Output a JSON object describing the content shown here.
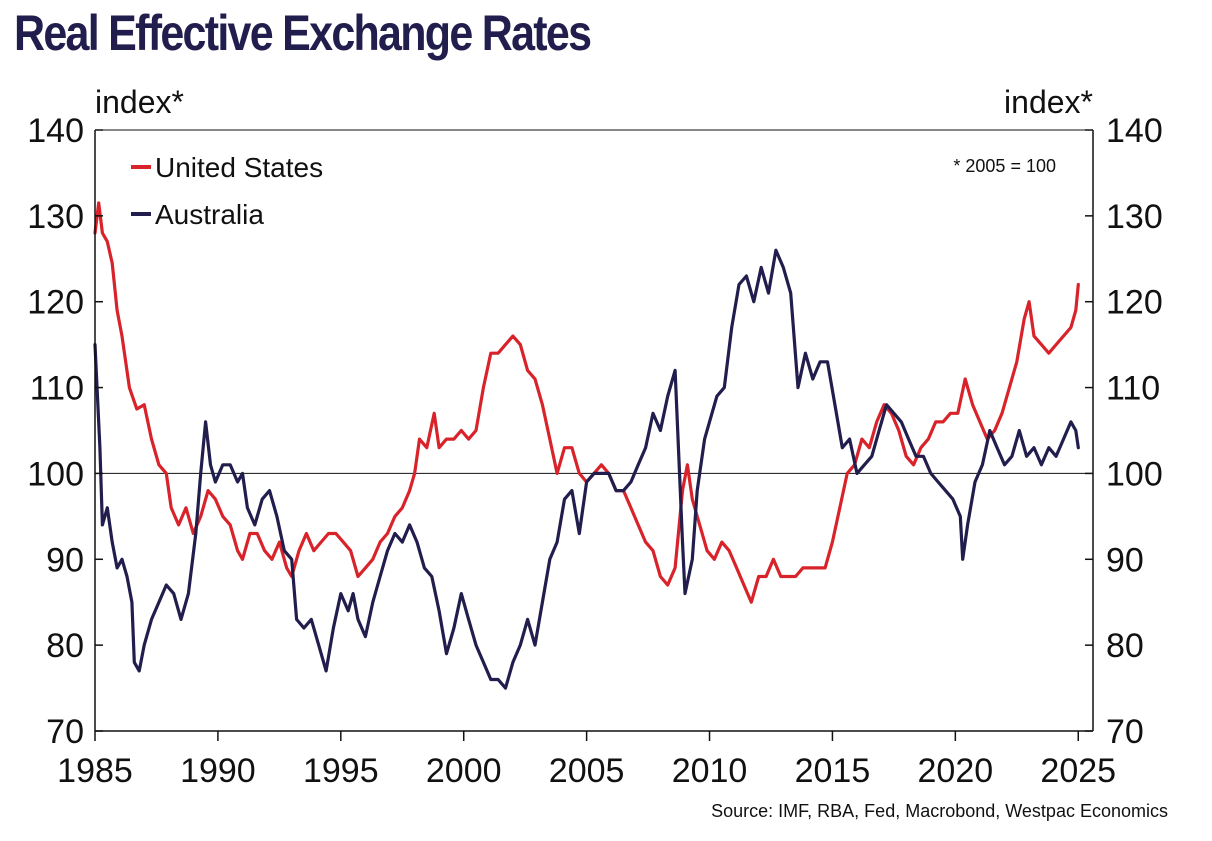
{
  "chart_data": {
    "type": "line",
    "title": "Real Effective Exchange Rates",
    "ylabel_left": "index*",
    "ylabel_right": "index*",
    "note": "* 2005 = 100",
    "source": "Source: IMF, RBA, Fed, Macrobond, Westpac Economics",
    "xlim": [
      1985,
      2025.6
    ],
    "ylim": [
      70,
      140
    ],
    "x_ticks": [
      1985,
      1990,
      1995,
      2000,
      2005,
      2010,
      2015,
      2020,
      2025
    ],
    "y_ticks": [
      70,
      80,
      90,
      100,
      110,
      120,
      130,
      140
    ],
    "reference_line": 100,
    "legend_position": "top-left",
    "colors": {
      "title": "#211e4d",
      "axis": "#111111"
    },
    "series": [
      {
        "name": "United States",
        "color": "#d8232a",
        "points": [
          [
            1985.0,
            128
          ],
          [
            1985.15,
            131.5
          ],
          [
            1985.3,
            128
          ],
          [
            1985.5,
            127
          ],
          [
            1985.7,
            124.5
          ],
          [
            1985.9,
            119
          ],
          [
            1986.1,
            116
          ],
          [
            1986.4,
            110
          ],
          [
            1986.7,
            107.5
          ],
          [
            1987.0,
            108
          ],
          [
            1987.3,
            104
          ],
          [
            1987.6,
            101
          ],
          [
            1987.9,
            100
          ],
          [
            1988.1,
            96
          ],
          [
            1988.4,
            94
          ],
          [
            1988.7,
            96
          ],
          [
            1989.0,
            93
          ],
          [
            1989.3,
            95
          ],
          [
            1989.6,
            98
          ],
          [
            1989.9,
            97
          ],
          [
            1990.2,
            95
          ],
          [
            1990.5,
            94
          ],
          [
            1990.8,
            91
          ],
          [
            1991.0,
            90
          ],
          [
            1991.3,
            93
          ],
          [
            1991.6,
            93
          ],
          [
            1991.9,
            91
          ],
          [
            1992.2,
            90
          ],
          [
            1992.5,
            92
          ],
          [
            1992.8,
            89
          ],
          [
            1993.0,
            88
          ],
          [
            1993.3,
            91
          ],
          [
            1993.6,
            93
          ],
          [
            1993.9,
            91
          ],
          [
            1994.2,
            92
          ],
          [
            1994.5,
            93
          ],
          [
            1994.8,
            93
          ],
          [
            1995.1,
            92
          ],
          [
            1995.4,
            91
          ],
          [
            1995.7,
            88
          ],
          [
            1996.0,
            89
          ],
          [
            1996.3,
            90
          ],
          [
            1996.6,
            92
          ],
          [
            1996.9,
            93
          ],
          [
            1997.2,
            95
          ],
          [
            1997.5,
            96
          ],
          [
            1997.8,
            98
          ],
          [
            1998.0,
            100
          ],
          [
            1998.2,
            104
          ],
          [
            1998.5,
            103
          ],
          [
            1998.8,
            107
          ],
          [
            1999.0,
            103
          ],
          [
            1999.3,
            104
          ],
          [
            1999.6,
            104
          ],
          [
            1999.9,
            105
          ],
          [
            2000.2,
            104
          ],
          [
            2000.5,
            105
          ],
          [
            2000.8,
            110
          ],
          [
            2001.1,
            114
          ],
          [
            2001.4,
            114
          ],
          [
            2001.7,
            115
          ],
          [
            2002.0,
            116
          ],
          [
            2002.3,
            115
          ],
          [
            2002.6,
            112
          ],
          [
            2002.9,
            111
          ],
          [
            2003.2,
            108
          ],
          [
            2003.5,
            104
          ],
          [
            2003.8,
            100
          ],
          [
            2004.1,
            103
          ],
          [
            2004.4,
            103
          ],
          [
            2004.7,
            100
          ],
          [
            2005.0,
            99
          ],
          [
            2005.3,
            100
          ],
          [
            2005.6,
            101
          ],
          [
            2005.9,
            100
          ],
          [
            2006.2,
            98
          ],
          [
            2006.5,
            98
          ],
          [
            2006.8,
            96
          ],
          [
            2007.1,
            94
          ],
          [
            2007.4,
            92
          ],
          [
            2007.7,
            91
          ],
          [
            2008.0,
            88
          ],
          [
            2008.3,
            87
          ],
          [
            2008.6,
            89
          ],
          [
            2008.9,
            98
          ],
          [
            2009.1,
            101
          ],
          [
            2009.3,
            97
          ],
          [
            2009.6,
            94
          ],
          [
            2009.9,
            91
          ],
          [
            2010.2,
            90
          ],
          [
            2010.5,
            92
          ],
          [
            2010.8,
            91
          ],
          [
            2011.1,
            89
          ],
          [
            2011.4,
            87
          ],
          [
            2011.7,
            85
          ],
          [
            2012.0,
            88
          ],
          [
            2012.3,
            88
          ],
          [
            2012.6,
            90
          ],
          [
            2012.9,
            88
          ],
          [
            2013.2,
            88
          ],
          [
            2013.5,
            88
          ],
          [
            2013.8,
            89
          ],
          [
            2014.1,
            89
          ],
          [
            2014.4,
            89
          ],
          [
            2014.7,
            89
          ],
          [
            2015.0,
            92
          ],
          [
            2015.3,
            96
          ],
          [
            2015.6,
            100
          ],
          [
            2015.9,
            101
          ],
          [
            2016.2,
            104
          ],
          [
            2016.5,
            103
          ],
          [
            2016.8,
            106
          ],
          [
            2017.1,
            108
          ],
          [
            2017.4,
            107
          ],
          [
            2017.7,
            105
          ],
          [
            2018.0,
            102
          ],
          [
            2018.3,
            101
          ],
          [
            2018.6,
            103
          ],
          [
            2018.9,
            104
          ],
          [
            2019.2,
            106
          ],
          [
            2019.5,
            106
          ],
          [
            2019.8,
            107
          ],
          [
            2020.1,
            107
          ],
          [
            2020.4,
            111
          ],
          [
            2020.7,
            108
          ],
          [
            2021.0,
            106
          ],
          [
            2021.3,
            104
          ],
          [
            2021.6,
            105
          ],
          [
            2021.9,
            107
          ],
          [
            2022.2,
            110
          ],
          [
            2022.5,
            113
          ],
          [
            2022.8,
            118
          ],
          [
            2023.0,
            120
          ],
          [
            2023.2,
            116
          ],
          [
            2023.5,
            115
          ],
          [
            2023.8,
            114
          ],
          [
            2024.1,
            115
          ],
          [
            2024.4,
            116
          ],
          [
            2024.7,
            117
          ],
          [
            2024.9,
            119
          ],
          [
            2025.0,
            122
          ]
        ]
      },
      {
        "name": "Australia",
        "color": "#211e4d",
        "points": [
          [
            1985.0,
            115
          ],
          [
            1985.2,
            103
          ],
          [
            1985.3,
            94
          ],
          [
            1985.5,
            96
          ],
          [
            1985.7,
            92
          ],
          [
            1985.9,
            89
          ],
          [
            1986.1,
            90
          ],
          [
            1986.3,
            88
          ],
          [
            1986.5,
            85
          ],
          [
            1986.6,
            78
          ],
          [
            1986.8,
            77
          ],
          [
            1987.0,
            80
          ],
          [
            1987.3,
            83
          ],
          [
            1987.6,
            85
          ],
          [
            1987.9,
            87
          ],
          [
            1988.2,
            86
          ],
          [
            1988.5,
            83
          ],
          [
            1988.8,
            86
          ],
          [
            1989.1,
            93
          ],
          [
            1989.3,
            100
          ],
          [
            1989.5,
            106
          ],
          [
            1989.7,
            101
          ],
          [
            1989.9,
            99
          ],
          [
            1990.2,
            101
          ],
          [
            1990.5,
            101
          ],
          [
            1990.8,
            99
          ],
          [
            1991.0,
            100
          ],
          [
            1991.2,
            96
          ],
          [
            1991.5,
            94
          ],
          [
            1991.8,
            97
          ],
          [
            1992.1,
            98
          ],
          [
            1992.4,
            95
          ],
          [
            1992.7,
            91
          ],
          [
            1993.0,
            90
          ],
          [
            1993.2,
            83
          ],
          [
            1993.5,
            82
          ],
          [
            1993.8,
            83
          ],
          [
            1994.1,
            80
          ],
          [
            1994.4,
            77
          ],
          [
            1994.7,
            82
          ],
          [
            1995.0,
            86
          ],
          [
            1995.3,
            84
          ],
          [
            1995.5,
            86
          ],
          [
            1995.7,
            83
          ],
          [
            1996.0,
            81
          ],
          [
            1996.3,
            85
          ],
          [
            1996.6,
            88
          ],
          [
            1996.9,
            91
          ],
          [
            1997.2,
            93
          ],
          [
            1997.5,
            92
          ],
          [
            1997.8,
            94
          ],
          [
            1998.1,
            92
          ],
          [
            1998.4,
            89
          ],
          [
            1998.7,
            88
          ],
          [
            1999.0,
            84
          ],
          [
            1999.3,
            79
          ],
          [
            1999.6,
            82
          ],
          [
            1999.9,
            86
          ],
          [
            2000.2,
            83
          ],
          [
            2000.5,
            80
          ],
          [
            2000.8,
            78
          ],
          [
            2001.1,
            76
          ],
          [
            2001.4,
            76
          ],
          [
            2001.7,
            75
          ],
          [
            2002.0,
            78
          ],
          [
            2002.3,
            80
          ],
          [
            2002.6,
            83
          ],
          [
            2002.9,
            80
          ],
          [
            2003.2,
            85
          ],
          [
            2003.5,
            90
          ],
          [
            2003.8,
            92
          ],
          [
            2004.1,
            97
          ],
          [
            2004.4,
            98
          ],
          [
            2004.7,
            93
          ],
          [
            2005.0,
            99
          ],
          [
            2005.3,
            100
          ],
          [
            2005.6,
            100
          ],
          [
            2005.9,
            100
          ],
          [
            2006.2,
            98
          ],
          [
            2006.5,
            98
          ],
          [
            2006.8,
            99
          ],
          [
            2007.1,
            101
          ],
          [
            2007.4,
            103
          ],
          [
            2007.7,
            107
          ],
          [
            2008.0,
            105
          ],
          [
            2008.3,
            109
          ],
          [
            2008.6,
            112
          ],
          [
            2008.9,
            92
          ],
          [
            2009.0,
            86
          ],
          [
            2009.3,
            90
          ],
          [
            2009.5,
            98
          ],
          [
            2009.8,
            104
          ],
          [
            2010.0,
            106
          ],
          [
            2010.3,
            109
          ],
          [
            2010.6,
            110
          ],
          [
            2010.9,
            117
          ],
          [
            2011.2,
            122
          ],
          [
            2011.5,
            123
          ],
          [
            2011.8,
            120
          ],
          [
            2012.1,
            124
          ],
          [
            2012.4,
            121
          ],
          [
            2012.7,
            126
          ],
          [
            2013.0,
            124
          ],
          [
            2013.3,
            121
          ],
          [
            2013.6,
            110
          ],
          [
            2013.9,
            114
          ],
          [
            2014.2,
            111
          ],
          [
            2014.5,
            113
          ],
          [
            2014.8,
            113
          ],
          [
            2015.1,
            108
          ],
          [
            2015.4,
            103
          ],
          [
            2015.7,
            104
          ],
          [
            2016.0,
            100
          ],
          [
            2016.3,
            101
          ],
          [
            2016.6,
            102
          ],
          [
            2016.9,
            105
          ],
          [
            2017.2,
            108
          ],
          [
            2017.5,
            107
          ],
          [
            2017.8,
            106
          ],
          [
            2018.1,
            104
          ],
          [
            2018.4,
            102
          ],
          [
            2018.7,
            102
          ],
          [
            2019.0,
            100
          ],
          [
            2019.3,
            99
          ],
          [
            2019.6,
            98
          ],
          [
            2019.9,
            97
          ],
          [
            2020.2,
            95
          ],
          [
            2020.3,
            90
          ],
          [
            2020.5,
            94
          ],
          [
            2020.8,
            99
          ],
          [
            2021.1,
            101
          ],
          [
            2021.4,
            105
          ],
          [
            2021.7,
            103
          ],
          [
            2022.0,
            101
          ],
          [
            2022.3,
            102
          ],
          [
            2022.6,
            105
          ],
          [
            2022.9,
            102
          ],
          [
            2023.2,
            103
          ],
          [
            2023.5,
            101
          ],
          [
            2023.8,
            103
          ],
          [
            2024.1,
            102
          ],
          [
            2024.4,
            104
          ],
          [
            2024.7,
            106
          ],
          [
            2024.9,
            105
          ],
          [
            2025.0,
            103
          ]
        ]
      }
    ]
  }
}
